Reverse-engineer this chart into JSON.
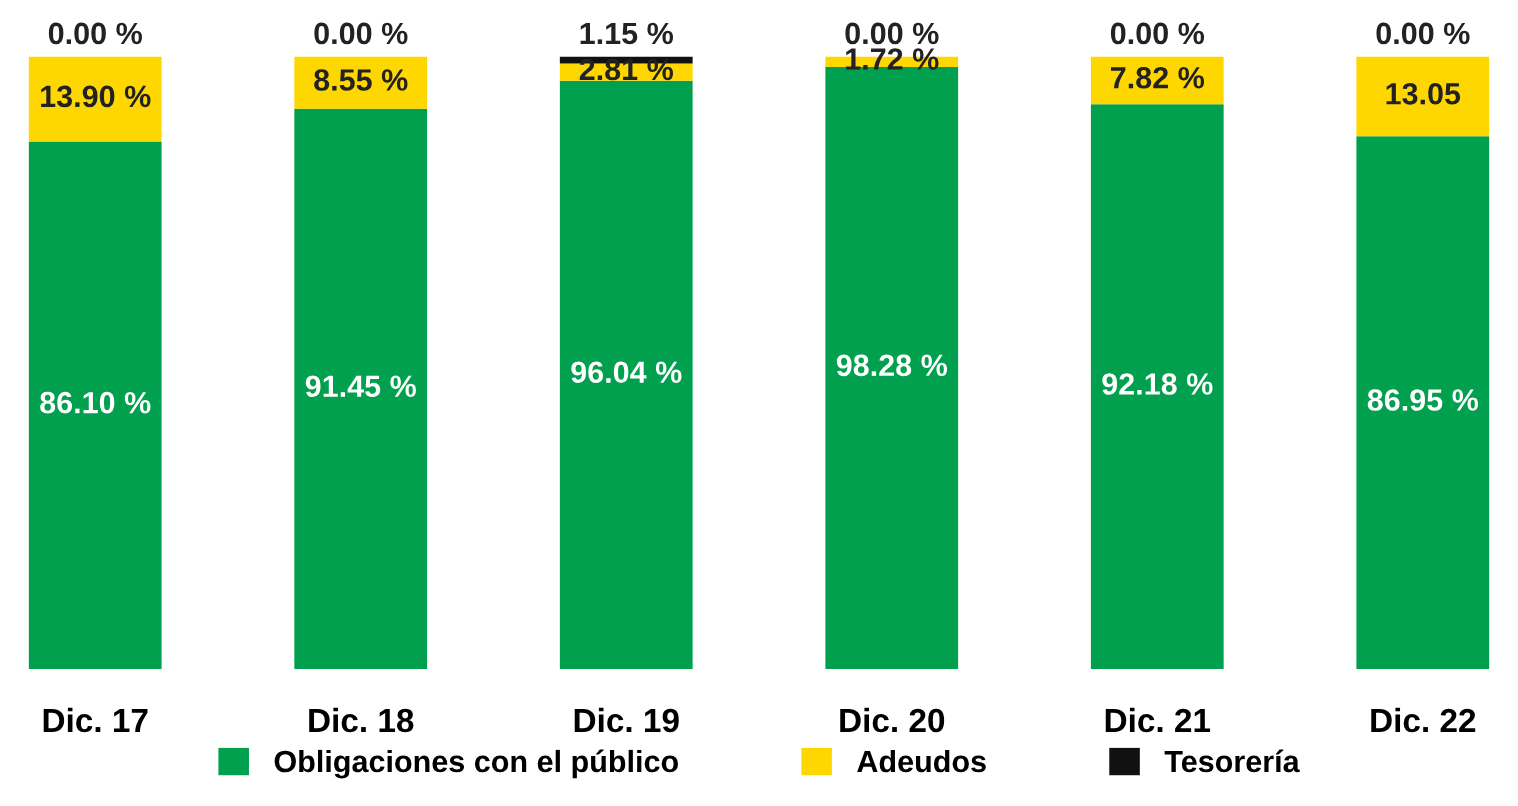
{
  "chart_data": {
    "type": "bar",
    "stacked": true,
    "categories": [
      "Dic. 17",
      "Dic. 18",
      "Dic. 19",
      "Dic. 20",
      "Dic. 21",
      "Dic. 22"
    ],
    "series": [
      {
        "name": "Obligaciones con el público",
        "color": "#00a04f",
        "values": [
          86.1,
          91.45,
          96.04,
          98.28,
          92.18,
          86.95
        ],
        "value_labels": [
          "86.10 %",
          "91.45 %",
          "96.04 %",
          "98.28 %",
          "92.18 %",
          "86.95 %"
        ]
      },
      {
        "name": "Adeudos",
        "color": "#ffd700",
        "values": [
          13.9,
          8.55,
          2.81,
          1.72,
          7.82,
          13.05
        ],
        "value_labels": [
          "13.90 %",
          "8.55 %",
          "2.81 %",
          "1.72 %",
          "7.82 %",
          "13.05"
        ]
      },
      {
        "name": "Tesorería",
        "color": "#111111",
        "values": [
          0.0,
          0.0,
          1.15,
          0.0,
          0.0,
          0.0
        ],
        "value_labels": [
          "0.00 %",
          "0.00 %",
          "1.15 %",
          "0.00 %",
          "0.00 %",
          "0.00 %"
        ]
      }
    ],
    "legend": "bottom",
    "grid": false
  }
}
